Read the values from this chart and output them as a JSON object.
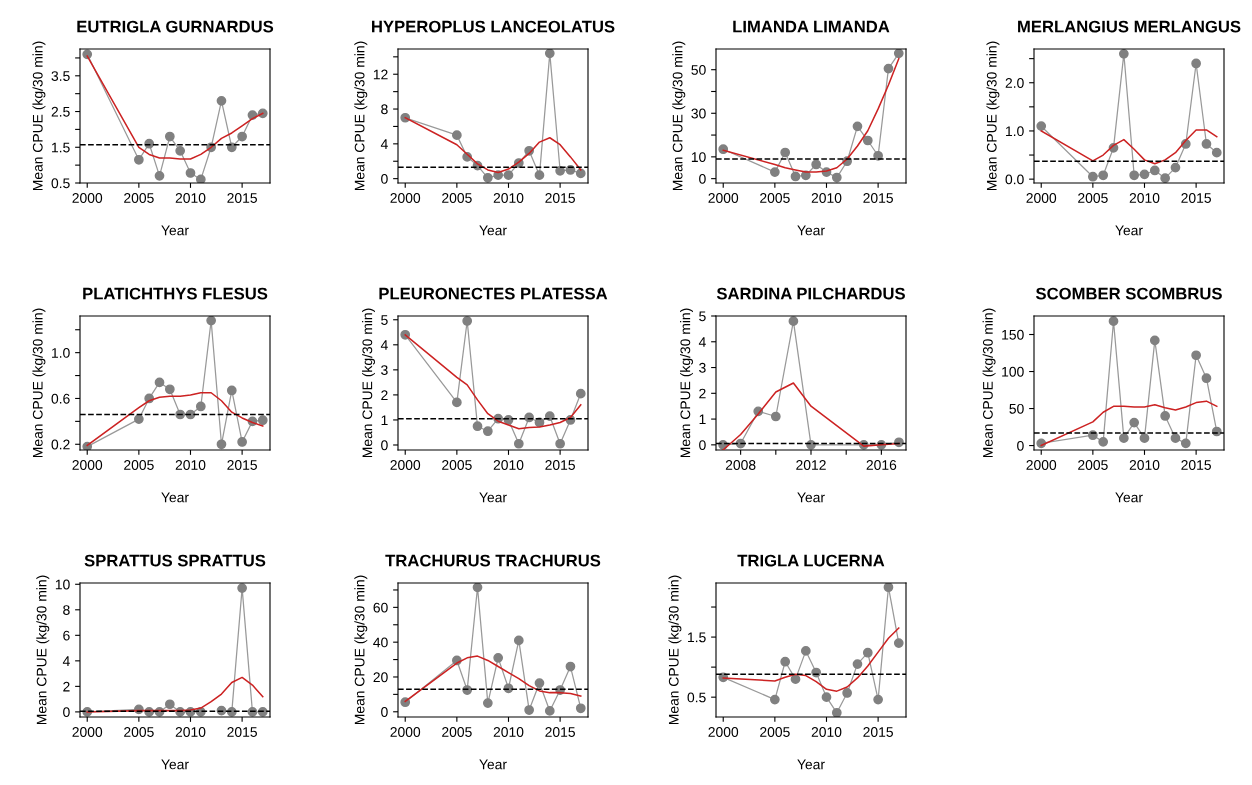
{
  "chart_data": [
    {
      "type": "line",
      "title": "EUTRIGLA GURNARDUS",
      "xlabel": "Year",
      "ylabel": "Mean CPUE (kg/30 min)",
      "x": [
        2000,
        2005,
        2006,
        2007,
        2008,
        2009,
        2010,
        2011,
        2012,
        2013,
        2014,
        2015,
        2016,
        2017
      ],
      "xlim": [
        1999.3,
        2017.7
      ],
      "xticks": [
        2000,
        2005,
        2010,
        2015
      ],
      "ylim": [
        0.5,
        4.25
      ],
      "yticks": [
        0.5,
        {
          "value": 1,
          "label": null
        },
        1.5,
        {
          "value": 2,
          "label": null
        },
        2.5,
        {
          "value": 3,
          "label": null
        },
        3.5,
        {
          "value": 4,
          "label": null
        }
      ],
      "series": [
        {
          "color": "#808080",
          "marker": "circle",
          "values": [
            4.1,
            1.15,
            1.6,
            0.7,
            1.8,
            1.4,
            0.78,
            0.6,
            1.5,
            2.8,
            1.5,
            1.8,
            2.4,
            2.45
          ]
        },
        {
          "color": "#cc2222",
          "marker": "none",
          "values": [
            4.05,
            1.5,
            1.3,
            1.2,
            1.2,
            1.17,
            1.17,
            1.3,
            1.5,
            1.75,
            1.9,
            2.1,
            2.3,
            2.45
          ]
        }
      ],
      "ref_lines": [
        {
          "axis": "y",
          "value": 1.57,
          "color": "#000000",
          "line_style": "dashed"
        }
      ]
    },
    {
      "type": "line",
      "title": "HYPEROPLUS LANCEOLATUS",
      "xlabel": "Year",
      "ylabel": "Mean CPUE (kg/30 min)",
      "x": [
        2000,
        2005,
        2006,
        2007,
        2008,
        2009,
        2010,
        2011,
        2012,
        2013,
        2014,
        2015,
        2016,
        2017
      ],
      "xlim": [
        1999.3,
        2017.7
      ],
      "xticks": [
        2000,
        2005,
        2010,
        2015
      ],
      "ylim": [
        -0.5,
        14.9
      ],
      "yticks": [
        0,
        {
          "value": 2,
          "label": null
        },
        4,
        {
          "value": 6,
          "label": null
        },
        8,
        {
          "value": 10,
          "label": null
        },
        12,
        {
          "value": 14,
          "label": null
        }
      ],
      "series": [
        {
          "color": "#808080",
          "marker": "circle",
          "values": [
            7.0,
            5.0,
            2.5,
            1.5,
            0.1,
            0.4,
            0.4,
            1.8,
            3.2,
            0.4,
            14.4,
            0.9,
            1.0,
            0.6
          ]
        },
        {
          "color": "#cc2222",
          "marker": "none",
          "values": [
            7.0,
            3.9,
            2.8,
            1.7,
            1.0,
            0.7,
            1.1,
            1.9,
            2.9,
            4.2,
            4.7,
            3.9,
            2.5,
            1.0
          ]
        }
      ],
      "ref_lines": [
        {
          "axis": "y",
          "value": 1.3,
          "color": "#000000",
          "line_style": "dashed"
        }
      ]
    },
    {
      "type": "line",
      "title": "LIMANDA LIMANDA",
      "xlabel": "Year",
      "ylabel": "Mean CPUE (kg/30 min)",
      "x": [
        2000,
        2005,
        2006,
        2007,
        2008,
        2009,
        2010,
        2011,
        2012,
        2013,
        2014,
        2015,
        2016,
        2017
      ],
      "xlim": [
        1999.3,
        2017.7
      ],
      "xticks": [
        2000,
        2005,
        2010,
        2015
      ],
      "ylim": [
        -2,
        59.5
      ],
      "yticks": [
        0,
        10,
        {
          "value": 20,
          "label": null
        },
        30,
        {
          "value": 40,
          "label": null
        },
        50
      ],
      "series": [
        {
          "color": "#808080",
          "marker": "circle",
          "values": [
            13.5,
            3,
            12,
            1,
            1.5,
            6.5,
            3,
            0.5,
            8,
            24,
            17.5,
            10.5,
            50.5,
            57.5
          ]
        },
        {
          "color": "#cc2222",
          "marker": "none",
          "values": [
            13,
            6.5,
            5,
            4,
            3,
            3,
            3.5,
            5,
            9,
            15,
            22,
            32,
            43,
            55
          ]
        }
      ],
      "ref_lines": [
        {
          "axis": "y",
          "value": 9,
          "color": "#000000",
          "line_style": "dashed"
        }
      ]
    },
    {
      "type": "line",
      "title": "MERLANGIUS MERLANGUS",
      "xlabel": "Year",
      "ylabel": "Mean CPUE (kg/30 min)",
      "x": [
        2000,
        2005,
        2006,
        2007,
        2008,
        2009,
        2010,
        2011,
        2012,
        2013,
        2014,
        2015,
        2016,
        2017
      ],
      "xlim": [
        1999.3,
        2017.7
      ],
      "xticks": [
        2000,
        2005,
        2010,
        2015
      ],
      "ylim": [
        -0.08,
        2.7
      ],
      "yticks": [
        {
          "value": 0,
          "label": "0.0"
        },
        {
          "value": 0.5,
          "label": null
        },
        {
          "value": 1,
          "label": "1.0"
        },
        {
          "value": 1.5,
          "label": null
        },
        {
          "value": 2,
          "label": "2.0"
        },
        {
          "value": 2.5,
          "label": null
        }
      ],
      "series": [
        {
          "color": "#808080",
          "marker": "circle",
          "values": [
            1.1,
            0.05,
            0.08,
            0.65,
            2.6,
            0.08,
            0.1,
            0.18,
            0.02,
            0.24,
            0.73,
            2.4,
            0.73,
            0.55
          ]
        },
        {
          "color": "#cc2222",
          "marker": "none",
          "values": [
            1.0,
            0.38,
            0.5,
            0.7,
            0.82,
            0.62,
            0.4,
            0.32,
            0.4,
            0.55,
            0.8,
            1.02,
            1.02,
            0.88
          ]
        }
      ],
      "ref_lines": [
        {
          "axis": "y",
          "value": 0.37,
          "color": "#000000",
          "line_style": "dashed"
        }
      ]
    },
    {
      "type": "line",
      "title": "PLATICHTHYS FLESUS",
      "xlabel": "Year",
      "ylabel": "Mean CPUE (kg/30 min)",
      "x": [
        2000,
        2005,
        2006,
        2007,
        2008,
        2009,
        2010,
        2011,
        2012,
        2013,
        2014,
        2015,
        2016,
        2017
      ],
      "xlim": [
        1999.3,
        2017.7
      ],
      "xticks": [
        2000,
        2005,
        2010,
        2015
      ],
      "ylim": [
        0.15,
        1.32
      ],
      "yticks": [
        0.2,
        {
          "value": 0.4,
          "label": null
        },
        0.6,
        {
          "value": 0.8,
          "label": null
        },
        {
          "value": 1,
          "label": "1.0"
        },
        {
          "value": 1.2,
          "label": null
        }
      ],
      "series": [
        {
          "color": "#808080",
          "marker": "circle",
          "values": [
            0.18,
            0.42,
            0.6,
            0.74,
            0.68,
            0.46,
            0.46,
            0.53,
            1.28,
            0.2,
            0.67,
            0.22,
            0.4,
            0.41
          ]
        },
        {
          "color": "#cc2222",
          "marker": "none",
          "values": [
            0.19,
            0.52,
            0.58,
            0.61,
            0.62,
            0.62,
            0.63,
            0.65,
            0.65,
            0.58,
            0.48,
            0.43,
            0.39,
            0.36
          ]
        }
      ],
      "ref_lines": [
        {
          "axis": "y",
          "value": 0.46,
          "color": "#000000",
          "line_style": "dashed"
        }
      ]
    },
    {
      "type": "line",
      "title": "PLEURONECTES PLATESSA",
      "xlabel": "Year",
      "ylabel": "Mean CPUE (kg/30 min)",
      "x": [
        2000,
        2005,
        2006,
        2007,
        2008,
        2009,
        2010,
        2011,
        2012,
        2013,
        2014,
        2015,
        2016,
        2017
      ],
      "xlim": [
        1999.3,
        2017.7
      ],
      "xticks": [
        2000,
        2005,
        2010,
        2015
      ],
      "ylim": [
        -0.2,
        5.15
      ],
      "yticks": [
        0,
        1,
        2,
        3,
        4,
        5
      ],
      "series": [
        {
          "color": "#808080",
          "marker": "circle",
          "values": [
            4.4,
            1.7,
            4.95,
            0.75,
            0.55,
            1.05,
            1.0,
            0.05,
            1.1,
            0.9,
            1.15,
            0.05,
            1.0,
            2.05
          ]
        },
        {
          "color": "#cc2222",
          "marker": "none",
          "values": [
            4.4,
            2.7,
            2.4,
            1.8,
            1.25,
            0.95,
            0.8,
            0.65,
            0.7,
            0.72,
            0.8,
            0.9,
            1.1,
            1.6
          ]
        }
      ],
      "ref_lines": [
        {
          "axis": "y",
          "value": 1.05,
          "color": "#000000",
          "line_style": "dashed"
        }
      ]
    },
    {
      "type": "line",
      "title": "SARDINA PILCHARDUS",
      "xlabel": "Year",
      "ylabel": "Mean CPUE (kg/30 min)",
      "x": [
        2007,
        2008,
        2009,
        2010,
        2011,
        2012,
        2015,
        2016,
        2017
      ],
      "xlim": [
        2006.6,
        2017.4
      ],
      "xticks": [
        2008,
        {
          "value": 2010,
          "label": null
        },
        2012,
        {
          "value": 2014,
          "label": null
        },
        2016
      ],
      "ylim": [
        -0.2,
        5.0
      ],
      "yticks": [
        0,
        1,
        2,
        3,
        4,
        5
      ],
      "series": [
        {
          "color": "#808080",
          "marker": "circle",
          "values": [
            0.0,
            0.05,
            1.3,
            1.1,
            4.8,
            0.0,
            0.0,
            0.0,
            0.1
          ]
        },
        {
          "color": "#cc2222",
          "marker": "none",
          "values": [
            -0.2,
            0.4,
            1.2,
            2.05,
            2.4,
            1.5,
            -0.05,
            0.0,
            0.05
          ]
        }
      ],
      "ref_lines": [
        {
          "axis": "y",
          "value": 0.05,
          "color": "#000000",
          "line_style": "dashed"
        }
      ]
    },
    {
      "type": "line",
      "title": "SCOMBER SCOMBRUS",
      "xlabel": "Year",
      "ylabel": "Mean CPUE (kg/30 min)",
      "x": [
        2000,
        2005,
        2006,
        2007,
        2008,
        2009,
        2010,
        2011,
        2012,
        2013,
        2014,
        2015,
        2016,
        2017
      ],
      "xlim": [
        1999.3,
        2017.7
      ],
      "xticks": [
        2000,
        2005,
        2010,
        2015
      ],
      "ylim": [
        -6,
        175
      ],
      "yticks": [
        0,
        50,
        100,
        150
      ],
      "series": [
        {
          "color": "#808080",
          "marker": "circle",
          "values": [
            3,
            14,
            5,
            168,
            10,
            31,
            10,
            142,
            40,
            10,
            3,
            122,
            91,
            19
          ]
        },
        {
          "color": "#cc2222",
          "marker": "none",
          "values": [
            0,
            32,
            45,
            53,
            53,
            52,
            52,
            55,
            51,
            48,
            52,
            58,
            60,
            53
          ]
        }
      ],
      "ref_lines": [
        {
          "axis": "y",
          "value": 17,
          "color": "#000000",
          "line_style": "dashed"
        }
      ]
    },
    {
      "type": "line",
      "title": "SPRATTUS SPRATTUS",
      "xlabel": "Year",
      "ylabel": "Mean CPUE (kg/30 min)",
      "x": [
        2000,
        2005,
        2006,
        2007,
        2008,
        2009,
        2010,
        2011,
        2012,
        2013,
        2014,
        2015,
        2016,
        2017
      ],
      "xlim": [
        1999.3,
        2017.7
      ],
      "xticks": [
        2000,
        2005,
        2010,
        2015
      ],
      "ylim": [
        -0.4,
        10.1
      ],
      "yticks": [
        0,
        2,
        4,
        6,
        8,
        10
      ],
      "series": [
        {
          "color": "#808080",
          "marker": "circle",
          "values": [
            0.0,
            0.2,
            0.0,
            0.0,
            0.6,
            0.0,
            0.0,
            0.0,
            null,
            0.1,
            0.0,
            9.7,
            0.0,
            0.0
          ]
        },
        {
          "color": "#cc2222",
          "marker": "none",
          "values": [
            0.0,
            0.1,
            0.1,
            0.1,
            0.1,
            0.1,
            0.15,
            0.3,
            0.8,
            1.4,
            2.3,
            2.7,
            2.1,
            1.2
          ]
        }
      ],
      "ref_lines": [
        {
          "axis": "y",
          "value": 0.05,
          "color": "#000000",
          "line_style": "dashed"
        }
      ]
    },
    {
      "type": "line",
      "title": "TRACHURUS TRACHURUS",
      "xlabel": "Year",
      "ylabel": "Mean CPUE (kg/30 min)",
      "x": [
        2000,
        2005,
        2006,
        2007,
        2008,
        2009,
        2010,
        2011,
        2012,
        2013,
        2014,
        2015,
        2016,
        2017
      ],
      "xlim": [
        1999.3,
        2017.7
      ],
      "xticks": [
        2000,
        2005,
        2010,
        2015
      ],
      "ylim": [
        -3,
        74
      ],
      "yticks": [
        0,
        {
          "value": 10,
          "label": null
        },
        20,
        {
          "value": 30,
          "label": null
        },
        40,
        {
          "value": 50,
          "label": null
        },
        60,
        {
          "value": 70,
          "label": null
        }
      ],
      "series": [
        {
          "color": "#808080",
          "marker": "circle",
          "values": [
            5.5,
            29.5,
            12.5,
            71.5,
            5,
            31,
            13.5,
            41,
            1,
            16.5,
            0.5,
            12.5,
            26,
            2
          ]
        },
        {
          "color": "#cc2222",
          "marker": "none",
          "values": [
            6,
            28,
            31,
            32,
            29.5,
            26,
            22.5,
            19,
            15,
            12,
            11,
            11,
            10.5,
            9
          ]
        }
      ],
      "ref_lines": [
        {
          "axis": "y",
          "value": 13,
          "color": "#000000",
          "line_style": "dashed"
        }
      ]
    },
    {
      "type": "line",
      "title": "TRIGLA LUCERNA",
      "xlabel": "Year",
      "ylabel": "Mean CPUE (kg/30 min)",
      "x": [
        2000,
        2005,
        2006,
        2007,
        2008,
        2009,
        2010,
        2011,
        2012,
        2013,
        2014,
        2015,
        2016,
        2017
      ],
      "xlim": [
        1999.3,
        2017.7
      ],
      "xticks": [
        2000,
        2005,
        2010,
        2015
      ],
      "ylim": [
        0.17,
        2.4
      ],
      "yticks": [
        0.5,
        {
          "value": 1,
          "label": null
        },
        1.5,
        {
          "value": 2,
          "label": null
        }
      ],
      "series": [
        {
          "color": "#808080",
          "marker": "circle",
          "values": [
            0.83,
            0.46,
            1.09,
            0.8,
            1.27,
            0.91,
            0.5,
            0.24,
            0.57,
            1.05,
            1.24,
            0.46,
            2.33,
            1.4
          ]
        },
        {
          "color": "#cc2222",
          "marker": "none",
          "values": [
            0.82,
            0.77,
            0.83,
            0.88,
            0.86,
            0.76,
            0.63,
            0.6,
            0.67,
            0.82,
            1.02,
            1.25,
            1.48,
            1.65
          ]
        }
      ],
      "ref_lines": [
        {
          "axis": "y",
          "value": 0.88,
          "color": "#000000",
          "line_style": "dashed"
        }
      ]
    }
  ]
}
